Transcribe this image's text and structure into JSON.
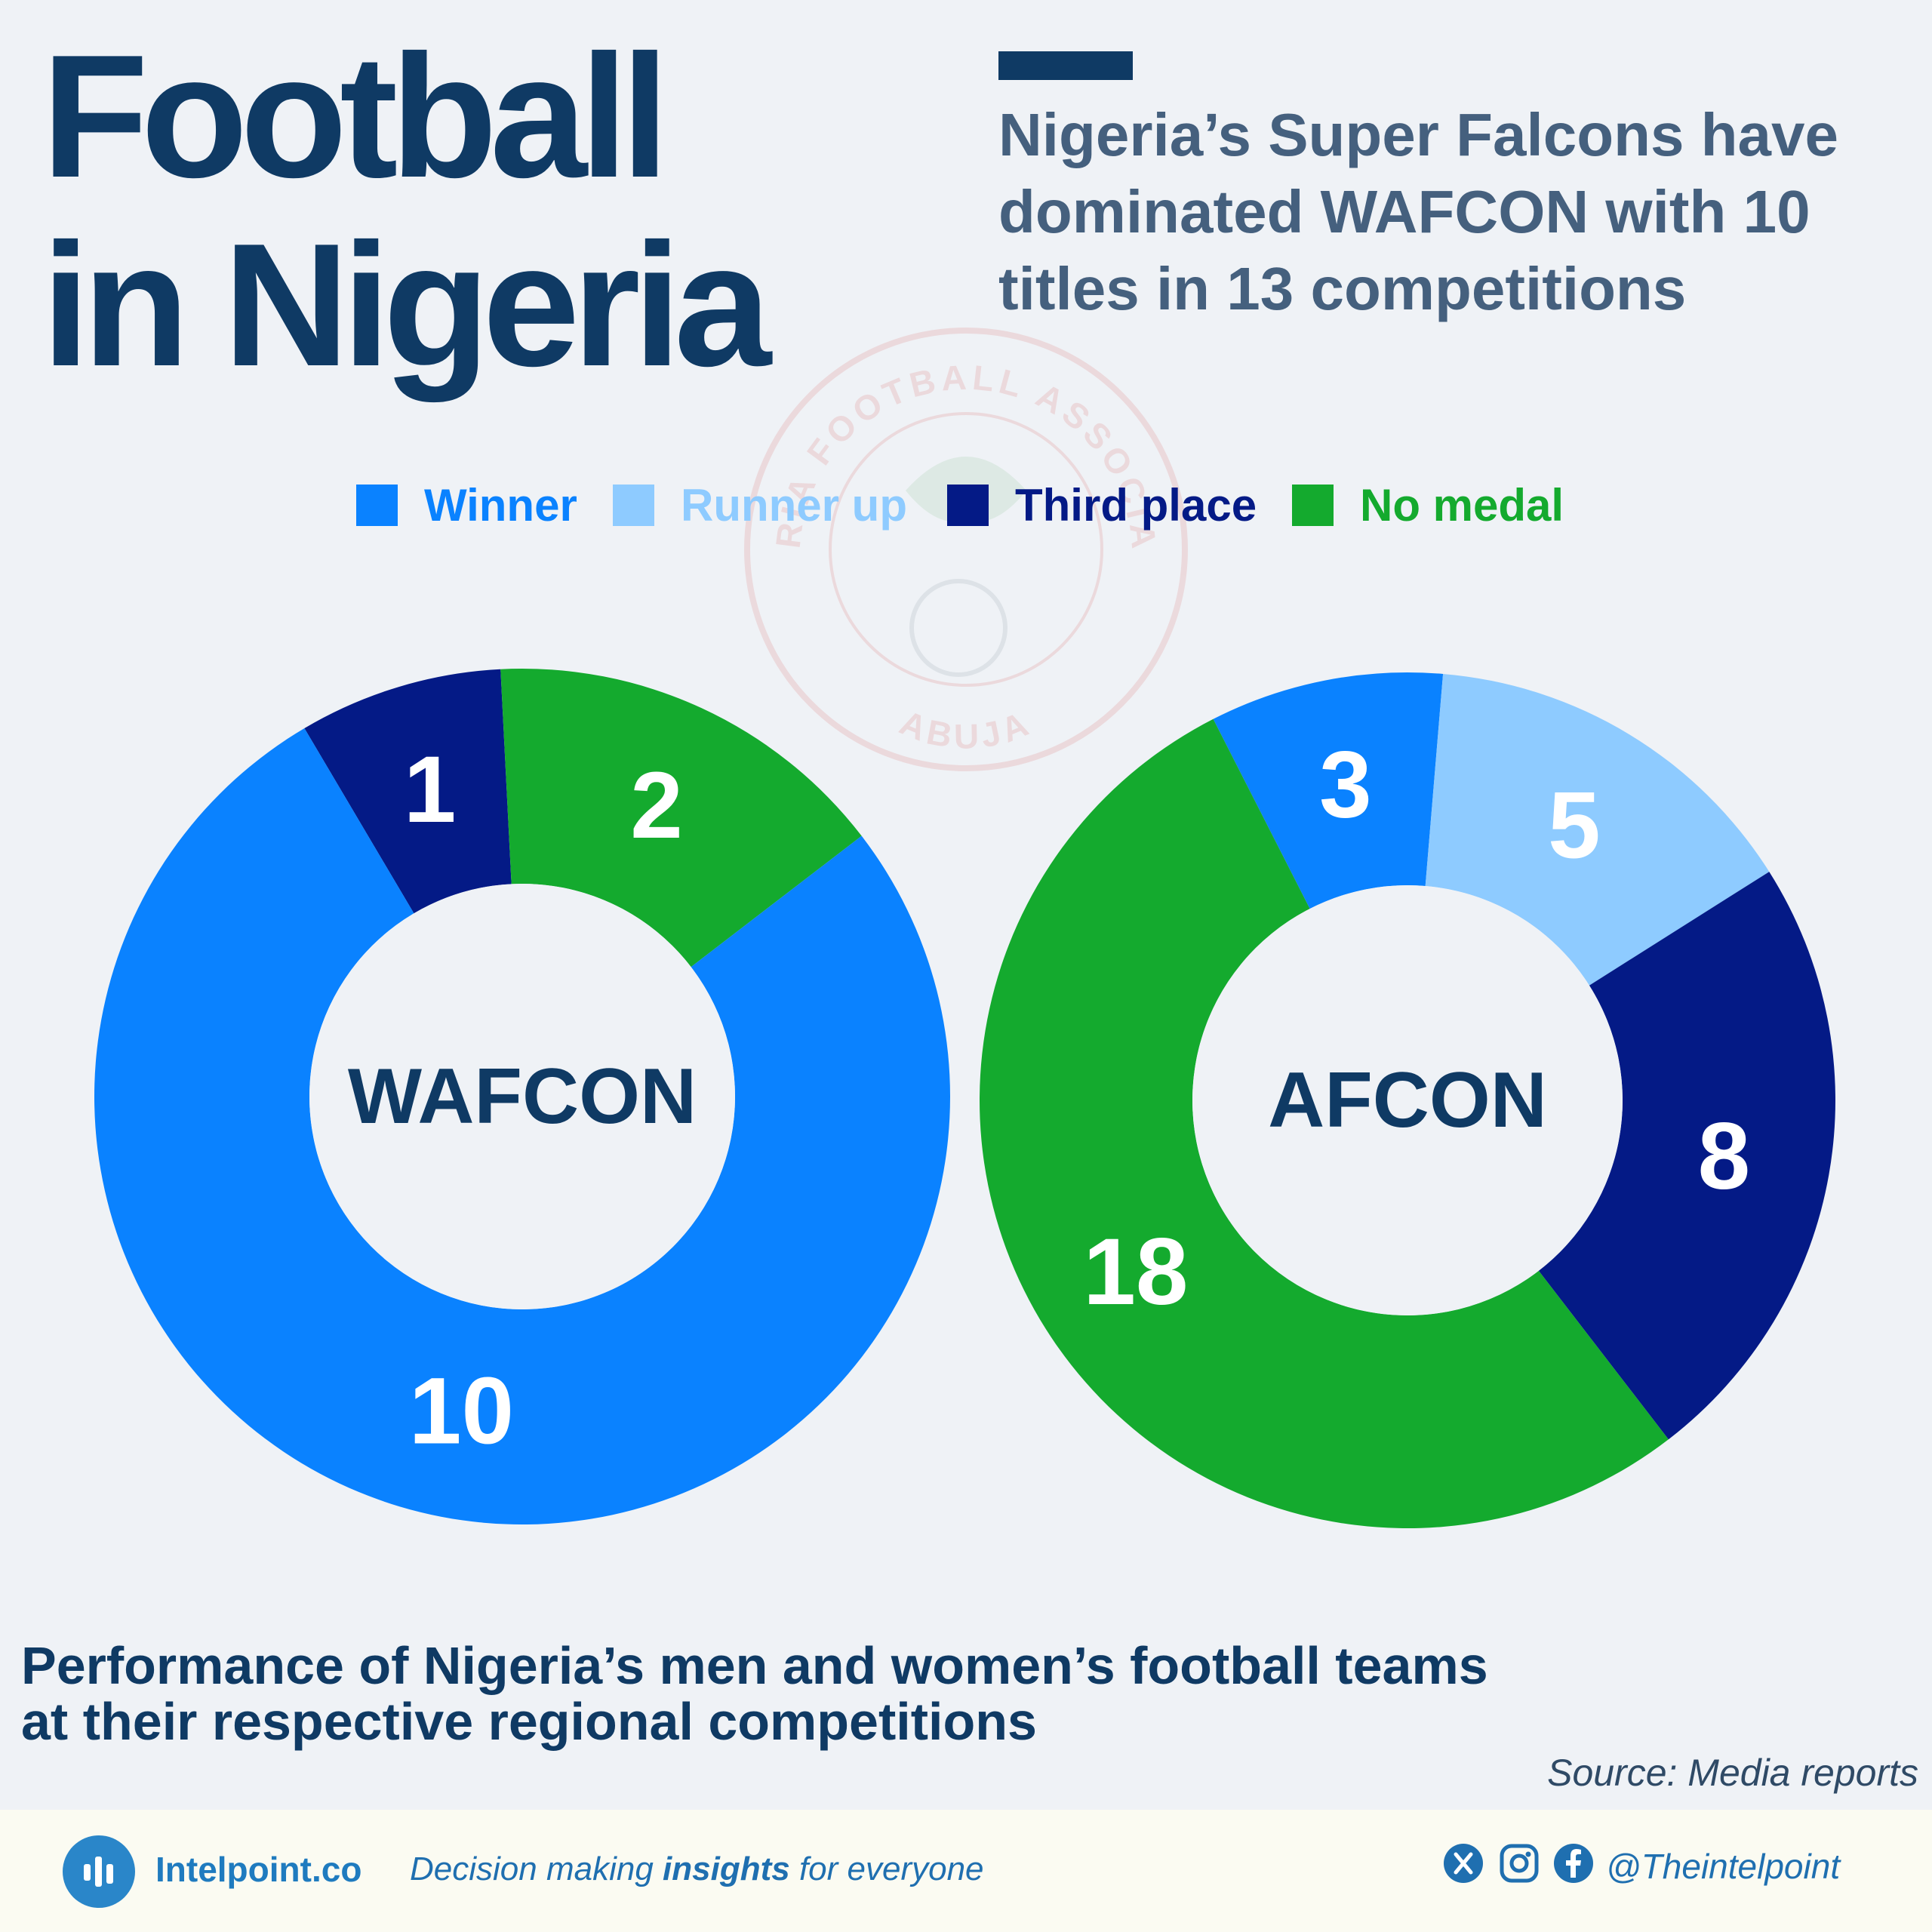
{
  "header": {
    "title_line1": "Football",
    "title_line2": "in Nigeria",
    "subtitle": "Nigeria’s Super Falcons have dominated WAFCON with 10 titles in 13 competitions"
  },
  "watermark": {
    "text_top": "NIGERIA FOOTBALL ASSOCIATION",
    "text_bottom": "ABUJA",
    "color": "#e8c6c8"
  },
  "legend": [
    {
      "label": "Winner",
      "color": "#0a82ff"
    },
    {
      "label": "Runner up",
      "color": "#8ecbff"
    },
    {
      "label": "Third place",
      "color": "#041a86"
    },
    {
      "label": "No medal",
      "color": "#14aa2e"
    }
  ],
  "chart_data": [
    {
      "type": "pie",
      "center_label": "WAFCON",
      "categories": [
        "Winner",
        "Third place",
        "No medal"
      ],
      "values": [
        10,
        1,
        2
      ],
      "colors": [
        "#0a82ff",
        "#041a86",
        "#14aa2e"
      ]
    },
    {
      "type": "pie",
      "center_label": "AFCON",
      "categories": [
        "Winner",
        "Runner up",
        "Third place",
        "No medal"
      ],
      "values": [
        3,
        5,
        8,
        18
      ],
      "colors": [
        "#0a82ff",
        "#8ecbff",
        "#041a86",
        "#14aa2e"
      ]
    }
  ],
  "footnote": "Performance of Nigeria’s men and women’s football teams at their respective regional competitions",
  "source": "Source: Media reports",
  "footer": {
    "brand": "Intelpoint.co",
    "tagline_pre": "Decision making ",
    "tagline_bold": "insights",
    "tagline_post": " for everyone",
    "handle": "@Theintelpoint"
  }
}
